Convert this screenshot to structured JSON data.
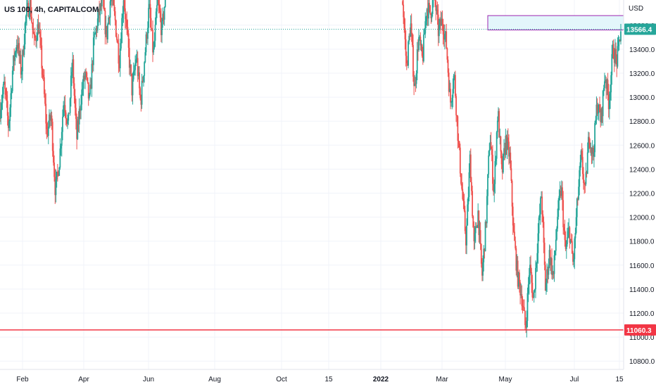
{
  "chart_data": {
    "type": "candlestick",
    "title": "US 100, 4h, CAPITALCOM",
    "currency_label": "USD",
    "y_axis": {
      "range": [
        10760,
        13810
      ],
      "ticks": [
        "13600.0",
        "13400.0",
        "13200.0",
        "13000.0",
        "12800.0",
        "12600.0",
        "12400.0",
        "12200.0",
        "12000.0",
        "11800.0",
        "11600.0",
        "11400.0",
        "11200.0",
        "11000.0",
        "10800.0"
      ],
      "tick_values": [
        13600,
        13400,
        13200,
        13000,
        12800,
        12600,
        12400,
        12200,
        12000,
        11800,
        11600,
        11400,
        11200,
        11000,
        10800
      ]
    },
    "x_axis": {
      "labels": [
        {
          "text": "Feb",
          "bold": false
        },
        {
          "text": "Apr",
          "bold": false
        },
        {
          "text": "Jun",
          "bold": false
        },
        {
          "text": "Aug",
          "bold": false
        },
        {
          "text": "Oct",
          "bold": false
        },
        {
          "text": "15",
          "bold": false
        },
        {
          "text": "2022",
          "bold": true
        },
        {
          "text": "Mar",
          "bold": false
        },
        {
          "text": "May",
          "bold": false
        },
        {
          "text": "Jul",
          "bold": false
        },
        {
          "text": "15",
          "bold": false
        }
      ]
    },
    "grid": true,
    "price_levels": [
      {
        "name": "current-price",
        "value": 13566.4,
        "label": "13566.4",
        "color": "#26a69a",
        "style": "dotted"
      },
      {
        "name": "support-line",
        "value": 11060.3,
        "label": "11060.3",
        "color": "#f23645",
        "style": "solid"
      }
    ],
    "zone": {
      "price_top": 13680,
      "price_bottom": 13560,
      "fill": "#e3f6fb",
      "stroke": "#9c27b0"
    },
    "colors": {
      "up": "#26a69a",
      "down": "#ef5350",
      "grid": "#f0f3fa"
    },
    "series": [
      {
        "segment": "early",
        "path": [
          12900,
          13100,
          12750,
          13250,
          13480,
          13200,
          13650,
          13800,
          13450,
          13600,
          13200,
          12700,
          12850,
          12210,
          12500,
          13000,
          12750,
          13300,
          12650,
          13000,
          13200,
          12950,
          13450,
          13650,
          13800,
          13500,
          13850,
          13650,
          13300,
          13850,
          13450,
          13050,
          13350,
          12950,
          13350,
          13750,
          13350,
          13800,
          13550,
          13900
        ]
      },
      {
        "segment": "late",
        "path": [
          13800,
          13250,
          13620,
          13050,
          13500,
          13300,
          13750,
          13700,
          13850,
          13550,
          13640,
          13450,
          12950,
          13200,
          12650,
          12200,
          11800,
          12500,
          11750,
          12050,
          11500,
          11950,
          12700,
          12200,
          12900,
          12350,
          12650,
          12500,
          11850,
          11500,
          11350,
          11060,
          11600,
          11300,
          11800,
          12200,
          11400,
          11700,
          11500,
          12000,
          12250,
          11700,
          11900,
          11600,
          12100,
          12500,
          12200,
          12700,
          12500,
          12950,
          12800,
          13200,
          12950,
          13400,
          13300,
          13566
        ]
      }
    ]
  }
}
